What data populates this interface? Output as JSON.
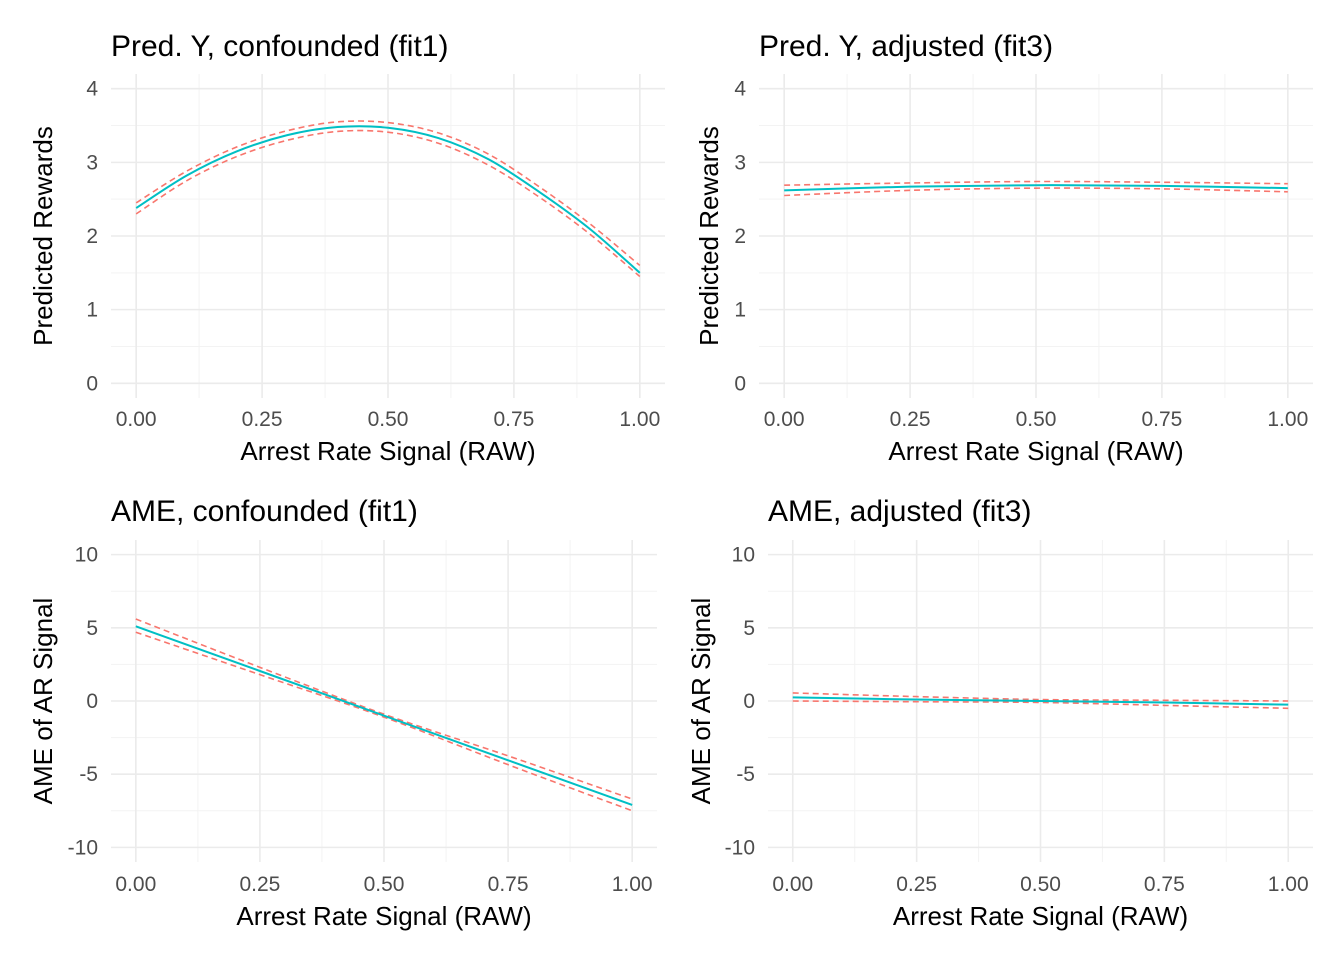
{
  "chart_data": [
    {
      "type": "line",
      "title": "Pred. Y, confounded (fit1)",
      "xlabel": "Arrest Rate Signal (RAW)",
      "ylabel": "Predicted Rewards",
      "xlim": [
        0,
        1
      ],
      "ylim": [
        0,
        4
      ],
      "xticks": [
        "0.00",
        "0.25",
        "0.50",
        "0.75",
        "1.00"
      ],
      "yticks": [
        "0",
        "1",
        "2",
        "3",
        "4"
      ],
      "x": [
        0.0,
        0.1,
        0.2,
        0.3,
        0.4,
        0.5,
        0.6,
        0.7,
        0.8,
        0.9,
        1.0
      ],
      "series": [
        {
          "role": "estimate",
          "color": "#00bfc4",
          "style": "solid",
          "values": [
            2.38,
            2.82,
            3.15,
            3.37,
            3.48,
            3.47,
            3.33,
            3.04,
            2.6,
            2.1,
            1.5
          ]
        },
        {
          "role": "upper",
          "color": "#f8766d",
          "style": "dashed",
          "values": [
            2.45,
            2.88,
            3.21,
            3.43,
            3.55,
            3.54,
            3.4,
            3.11,
            2.67,
            2.17,
            1.6
          ]
        },
        {
          "role": "lower",
          "color": "#f8766d",
          "style": "dashed",
          "values": [
            2.3,
            2.75,
            3.08,
            3.3,
            3.42,
            3.41,
            3.26,
            2.96,
            2.53,
            2.03,
            1.45
          ]
        }
      ]
    },
    {
      "type": "line",
      "title": "Pred. Y, adjusted (fit3)",
      "xlabel": "Arrest Rate Signal (RAW)",
      "ylabel": "Predicted Rewards",
      "xlim": [
        0,
        1
      ],
      "ylim": [
        0,
        4
      ],
      "xticks": [
        "0.00",
        "0.25",
        "0.50",
        "0.75",
        "1.00"
      ],
      "yticks": [
        "0",
        "1",
        "2",
        "3",
        "4"
      ],
      "x": [
        0.0,
        0.25,
        0.5,
        0.75,
        1.0
      ],
      "series": [
        {
          "role": "estimate",
          "color": "#00bfc4",
          "style": "solid",
          "values": [
            2.62,
            2.67,
            2.69,
            2.68,
            2.65
          ]
        },
        {
          "role": "upper",
          "color": "#f8766d",
          "style": "dashed",
          "values": [
            2.69,
            2.72,
            2.74,
            2.73,
            2.71
          ]
        },
        {
          "role": "lower",
          "color": "#f8766d",
          "style": "dashed",
          "values": [
            2.55,
            2.62,
            2.65,
            2.64,
            2.6
          ]
        }
      ]
    },
    {
      "type": "line",
      "title": "AME, confounded (fit1)",
      "xlabel": "Arrest Rate Signal (RAW)",
      "ylabel": "AME of AR Signal",
      "xlim": [
        0,
        1
      ],
      "ylim": [
        -10,
        10
      ],
      "xticks": [
        "0.00",
        "0.25",
        "0.50",
        "0.75",
        "1.00"
      ],
      "yticks": [
        "-10",
        "-5",
        "0",
        "5",
        "10"
      ],
      "x": [
        0.0,
        0.25,
        0.5,
        0.75,
        1.0
      ],
      "series": [
        {
          "role": "estimate",
          "color": "#00bfc4",
          "style": "solid",
          "values": [
            5.1,
            2.05,
            -1.0,
            -4.05,
            -7.1
          ]
        },
        {
          "role": "upper",
          "color": "#f8766d",
          "style": "dashed",
          "values": [
            5.6,
            2.3,
            -0.9,
            -3.75,
            -6.7
          ]
        },
        {
          "role": "lower",
          "color": "#f8766d",
          "style": "dashed",
          "values": [
            4.7,
            1.8,
            -1.1,
            -4.35,
            -7.5
          ]
        }
      ]
    },
    {
      "type": "line",
      "title": "AME, adjusted (fit3)",
      "xlabel": "Arrest Rate Signal (RAW)",
      "ylabel": "AME of AR Signal",
      "xlim": [
        0,
        1
      ],
      "ylim": [
        -10,
        10
      ],
      "xticks": [
        "0.00",
        "0.25",
        "0.50",
        "0.75",
        "1.00"
      ],
      "yticks": [
        "-10",
        "-5",
        "0",
        "5",
        "10"
      ],
      "x": [
        0.0,
        0.25,
        0.5,
        0.75,
        1.0
      ],
      "series": [
        {
          "role": "estimate",
          "color": "#00bfc4",
          "style": "solid",
          "values": [
            0.25,
            0.1,
            0.0,
            -0.1,
            -0.25
          ]
        },
        {
          "role": "upper",
          "color": "#f8766d",
          "style": "dashed",
          "values": [
            0.55,
            0.3,
            0.1,
            0.05,
            0.0
          ]
        },
        {
          "role": "lower",
          "color": "#f8766d",
          "style": "dashed",
          "values": [
            0.0,
            -0.05,
            -0.1,
            -0.3,
            -0.5
          ]
        }
      ]
    }
  ]
}
